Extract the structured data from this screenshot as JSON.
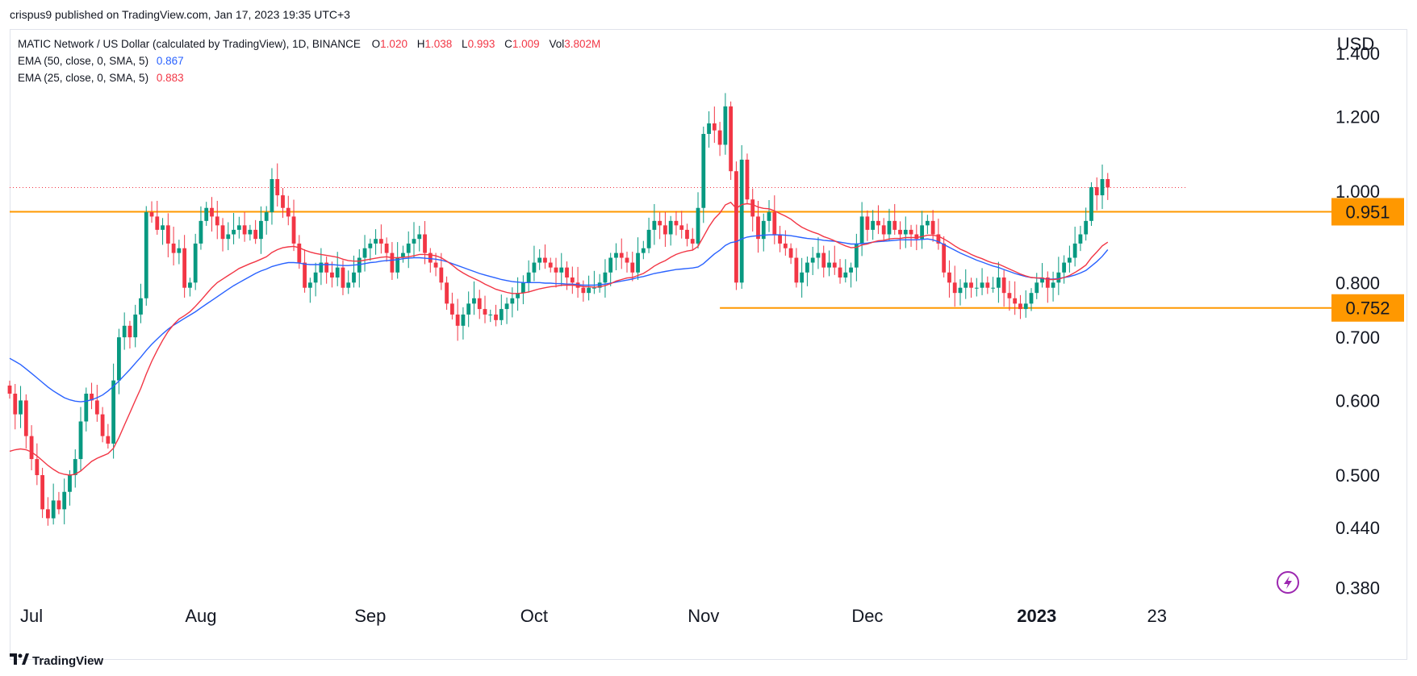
{
  "header": {
    "published": "crispus9 published on TradingView.com, Jan 17, 2023 19:35 UTC+3"
  },
  "legend": {
    "symbol": "MATIC Network / US Dollar (calculated by TradingView), 1D, BINANCE",
    "o_label": "O",
    "o_value": "1.020",
    "h_label": "H",
    "h_value": "1.038",
    "l_label": "L",
    "l_value": "0.993",
    "c_label": "C",
    "c_value": "1.009",
    "vol_label": "Vol",
    "vol_value": "3.802M",
    "ema50_label": "EMA (50, close, 0, SMA, 5)",
    "ema50_value": "0.867",
    "ema25_label": "EMA (25, close, 0, SMA, 5)",
    "ema25_value": "0.883"
  },
  "brand": {
    "name": "TradingView",
    "logo": "TV-logo-icon"
  },
  "chart_data": {
    "type": "candlestick",
    "currency": "USD",
    "scale": "log",
    "y_ticks": [
      {
        "value": 1.4,
        "label": "1.400"
      },
      {
        "value": 1.2,
        "label": "1.200"
      },
      {
        "value": 1.0,
        "label": "1.000"
      },
      {
        "value": 0.8,
        "label": "0.800"
      },
      {
        "value": 0.7,
        "label": "0.700"
      },
      {
        "value": 0.6,
        "label": "0.600"
      },
      {
        "value": 0.5,
        "label": "0.500"
      },
      {
        "value": 0.44,
        "label": "0.440"
      },
      {
        "value": 0.38,
        "label": "0.380"
      }
    ],
    "x_ticks": [
      {
        "label": "Jul",
        "day": 4,
        "bold": false
      },
      {
        "label": "Aug",
        "day": 35,
        "bold": false
      },
      {
        "label": "Sep",
        "day": 66,
        "bold": false
      },
      {
        "label": "Oct",
        "day": 96,
        "bold": false
      },
      {
        "label": "Nov",
        "day": 127,
        "bold": false
      },
      {
        "label": "Dec",
        "day": 157,
        "bold": false
      },
      {
        "label": "2023",
        "day": 188,
        "bold": true
      },
      {
        "label": "23",
        "day": 210,
        "bold": false
      }
    ],
    "date_axis_start": "2022-06-27",
    "current_price": 1.009,
    "levels": [
      {
        "value": 0.951,
        "label": "0.951",
        "color": "#ff9800",
        "from_day": 0
      },
      {
        "value": 0.752,
        "label": "0.752",
        "color": "#ff9800",
        "from_day": 130
      }
    ],
    "colors": {
      "up": "#089981",
      "down": "#f23645",
      "ema50": "#2962ff",
      "ema25": "#f23645",
      "level": "#ff9800",
      "last_price": "#f23645"
    },
    "closes": [
      0.61,
      0.58,
      0.6,
      0.55,
      0.52,
      0.5,
      0.46,
      0.45,
      0.47,
      0.46,
      0.48,
      0.5,
      0.52,
      0.57,
      0.61,
      0.6,
      0.58,
      0.55,
      0.54,
      0.63,
      0.7,
      0.72,
      0.7,
      0.74,
      0.77,
      0.95,
      0.94,
      0.91,
      0.92,
      0.88,
      0.86,
      0.87,
      0.79,
      0.8,
      0.88,
      0.93,
      0.96,
      0.94,
      0.92,
      0.89,
      0.9,
      0.91,
      0.92,
      0.9,
      0.91,
      0.89,
      0.93,
      0.95,
      1.03,
      0.99,
      0.96,
      0.94,
      0.88,
      0.84,
      0.79,
      0.8,
      0.82,
      0.84,
      0.82,
      0.81,
      0.83,
      0.79,
      0.8,
      0.82,
      0.85,
      0.87,
      0.88,
      0.89,
      0.88,
      0.86,
      0.82,
      0.85,
      0.86,
      0.88,
      0.89,
      0.9,
      0.86,
      0.84,
      0.83,
      0.8,
      0.76,
      0.74,
      0.72,
      0.74,
      0.76,
      0.77,
      0.75,
      0.74,
      0.74,
      0.73,
      0.75,
      0.76,
      0.77,
      0.78,
      0.8,
      0.82,
      0.84,
      0.85,
      0.84,
      0.83,
      0.82,
      0.83,
      0.81,
      0.8,
      0.79,
      0.78,
      0.79,
      0.79,
      0.8,
      0.82,
      0.85,
      0.86,
      0.85,
      0.84,
      0.82,
      0.86,
      0.87,
      0.91,
      0.93,
      0.92,
      0.9,
      0.93,
      0.92,
      0.91,
      0.89,
      0.88,
      0.96,
      1.15,
      1.18,
      1.16,
      1.12,
      1.23,
      1.05,
      0.8,
      1.08,
      0.98,
      0.94,
      0.89,
      0.93,
      0.95,
      0.9,
      0.88,
      0.87,
      0.85,
      0.8,
      0.82,
      0.84,
      0.85,
      0.86,
      0.83,
      0.84,
      0.83,
      0.81,
      0.82,
      0.83,
      0.88,
      0.94,
      0.91,
      0.93,
      0.92,
      0.9,
      0.93,
      0.91,
      0.9,
      0.91,
      0.9,
      0.89,
      0.92,
      0.93,
      0.9,
      0.88,
      0.82,
      0.8,
      0.78,
      0.79,
      0.8,
      0.79,
      0.79,
      0.8,
      0.79,
      0.79,
      0.81,
      0.78,
      0.77,
      0.76,
      0.75,
      0.76,
      0.78,
      0.8,
      0.81,
      0.79,
      0.8,
      0.82,
      0.84,
      0.85,
      0.88,
      0.9,
      0.93,
      1.01,
      0.99,
      1.03,
      1.009
    ],
    "ema50": [
      0.665,
      0.66,
      0.655,
      0.648,
      0.641,
      0.634,
      0.627,
      0.62,
      0.614,
      0.609,
      0.604,
      0.601,
      0.599,
      0.598,
      0.599,
      0.601,
      0.604,
      0.608,
      0.614,
      0.621,
      0.629,
      0.638,
      0.647,
      0.657,
      0.667,
      0.678,
      0.688,
      0.697,
      0.706,
      0.714,
      0.721,
      0.727,
      0.733,
      0.739,
      0.745,
      0.752,
      0.759,
      0.766,
      0.773,
      0.78,
      0.787,
      0.794,
      0.8,
      0.806,
      0.812,
      0.818,
      0.823,
      0.827,
      0.832,
      0.835,
      0.838,
      0.84,
      0.84,
      0.839,
      0.837,
      0.836,
      0.836,
      0.836,
      0.836,
      0.836,
      0.835,
      0.834,
      0.834,
      0.835,
      0.836,
      0.838,
      0.84,
      0.841,
      0.843,
      0.844,
      0.845,
      0.846,
      0.848,
      0.849,
      0.85,
      0.85,
      0.849,
      0.848,
      0.847,
      0.845,
      0.842,
      0.838,
      0.834,
      0.83,
      0.826,
      0.822,
      0.818,
      0.815,
      0.812,
      0.809,
      0.806,
      0.804,
      0.802,
      0.801,
      0.8,
      0.8,
      0.8,
      0.8,
      0.799,
      0.799,
      0.798,
      0.798,
      0.797,
      0.797,
      0.796,
      0.795,
      0.795,
      0.795,
      0.796,
      0.797,
      0.799,
      0.801,
      0.803,
      0.805,
      0.807,
      0.81,
      0.812,
      0.815,
      0.818,
      0.82,
      0.822,
      0.824,
      0.826,
      0.827,
      0.828,
      0.829,
      0.831,
      0.838,
      0.848,
      0.858,
      0.866,
      0.876,
      0.882,
      0.884,
      0.89,
      0.894,
      0.896,
      0.897,
      0.898,
      0.899,
      0.899,
      0.899,
      0.898,
      0.897,
      0.895,
      0.893,
      0.891,
      0.89,
      0.889,
      0.887,
      0.886,
      0.885,
      0.883,
      0.881,
      0.879,
      0.879,
      0.88,
      0.881,
      0.883,
      0.884,
      0.885,
      0.886,
      0.887,
      0.888,
      0.888,
      0.888,
      0.888,
      0.889,
      0.89,
      0.888,
      0.884,
      0.878,
      0.872,
      0.866,
      0.86,
      0.855,
      0.85,
      0.845,
      0.841,
      0.837,
      0.833,
      0.83,
      0.826,
      0.822,
      0.818,
      0.815,
      0.812,
      0.81,
      0.809,
      0.808,
      0.807,
      0.807,
      0.808,
      0.81,
      0.812,
      0.815,
      0.819,
      0.824,
      0.833,
      0.842,
      0.853,
      0.867
    ],
    "ema25": [
      0.53,
      0.532,
      0.533,
      0.532,
      0.529,
      0.524,
      0.518,
      0.512,
      0.507,
      0.503,
      0.501,
      0.5,
      0.501,
      0.505,
      0.511,
      0.517,
      0.521,
      0.524,
      0.527,
      0.534,
      0.548,
      0.565,
      0.582,
      0.6,
      0.618,
      0.64,
      0.66,
      0.678,
      0.695,
      0.71,
      0.722,
      0.732,
      0.738,
      0.745,
      0.755,
      0.766,
      0.778,
      0.79,
      0.8,
      0.807,
      0.814,
      0.821,
      0.828,
      0.833,
      0.838,
      0.842,
      0.847,
      0.852,
      0.861,
      0.867,
      0.871,
      0.873,
      0.874,
      0.871,
      0.866,
      0.862,
      0.859,
      0.857,
      0.855,
      0.853,
      0.851,
      0.847,
      0.844,
      0.843,
      0.843,
      0.845,
      0.847,
      0.849,
      0.851,
      0.852,
      0.85,
      0.85,
      0.851,
      0.852,
      0.854,
      0.857,
      0.857,
      0.856,
      0.854,
      0.85,
      0.843,
      0.835,
      0.826,
      0.819,
      0.813,
      0.808,
      0.803,
      0.797,
      0.792,
      0.787,
      0.784,
      0.781,
      0.779,
      0.779,
      0.78,
      0.782,
      0.785,
      0.788,
      0.79,
      0.792,
      0.793,
      0.795,
      0.795,
      0.795,
      0.794,
      0.792,
      0.792,
      0.791,
      0.792,
      0.794,
      0.798,
      0.803,
      0.806,
      0.809,
      0.81,
      0.814,
      0.818,
      0.825,
      0.833,
      0.839,
      0.844,
      0.851,
      0.857,
      0.861,
      0.864,
      0.866,
      0.874,
      0.895,
      0.917,
      0.935,
      0.948,
      0.967,
      0.973,
      0.959,
      0.968,
      0.97,
      0.968,
      0.962,
      0.959,
      0.958,
      0.953,
      0.947,
      0.941,
      0.934,
      0.924,
      0.916,
      0.91,
      0.905,
      0.901,
      0.895,
      0.891,
      0.886,
      0.88,
      0.875,
      0.871,
      0.872,
      0.877,
      0.879,
      0.883,
      0.886,
      0.887,
      0.89,
      0.891,
      0.891,
      0.893,
      0.893,
      0.893,
      0.895,
      0.898,
      0.898,
      0.896,
      0.89,
      0.883,
      0.875,
      0.868,
      0.863,
      0.857,
      0.852,
      0.848,
      0.843,
      0.839,
      0.837,
      0.832,
      0.827,
      0.822,
      0.817,
      0.813,
      0.81,
      0.809,
      0.809,
      0.806,
      0.806,
      0.807,
      0.81,
      0.814,
      0.82,
      0.827,
      0.835,
      0.85,
      0.862,
      0.875,
      0.883
    ]
  }
}
